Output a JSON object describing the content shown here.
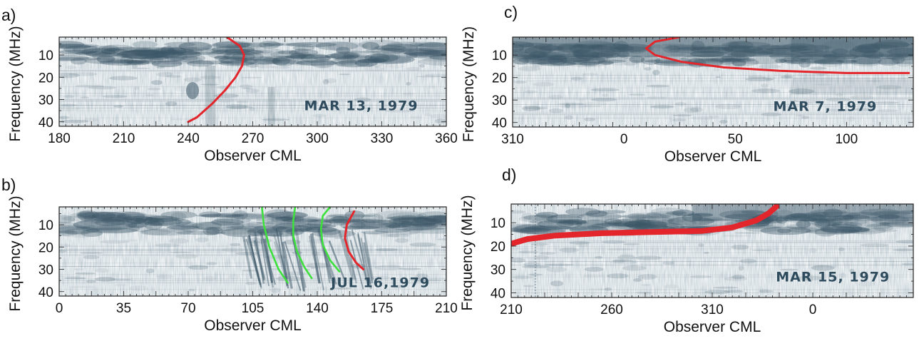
{
  "colors": {
    "spectrogram_ink": "#3a5566",
    "red_curve": "#e2262c",
    "green_curve": "#3ee03e",
    "background": "#f4f6f7"
  },
  "chart_data": [
    {
      "id": "a",
      "type": "spectrogram",
      "panel_label": "a)",
      "stamp": "MAR 13, 1979",
      "xlabel": "Observer CML",
      "ylabel": "Frequency (MHz)",
      "xticks": [
        "180",
        "210",
        "240",
        "270",
        "300",
        "330",
        "360"
      ],
      "yticks": [
        "10",
        "20",
        "30",
        "40"
      ],
      "xlim": [
        180,
        360
      ],
      "ylim": [
        42,
        2
      ],
      "series": [
        {
          "color": "red",
          "points": [
            [
              258,
              2
            ],
            [
              264,
              6
            ],
            [
              266,
              10
            ],
            [
              265,
              15
            ],
            [
              262,
              20
            ],
            [
              257,
              26
            ],
            [
              251,
              32
            ],
            [
              244,
              38
            ],
            [
              240,
              40
            ]
          ]
        }
      ]
    },
    {
      "id": "b",
      "type": "spectrogram",
      "panel_label": "b)",
      "stamp": "JUL 16,1979",
      "xlabel": "Observer CML",
      "ylabel": "Frequency (MHz)",
      "xticks": [
        "0",
        "35",
        "70",
        "105",
        "140",
        "175",
        "210"
      ],
      "yticks": [
        "10",
        "20",
        "30",
        "40"
      ],
      "xlim": [
        0,
        210
      ],
      "ylim": [
        42,
        2
      ],
      "series": [
        {
          "color": "green",
          "points": [
            [
              110,
              2
            ],
            [
              111,
              10
            ],
            [
              114,
              20
            ],
            [
              119,
              30
            ],
            [
              124,
              36
            ]
          ]
        },
        {
          "color": "green",
          "points": [
            [
              128,
              2
            ],
            [
              127,
              8
            ],
            [
              127,
              15
            ],
            [
              129,
              22
            ],
            [
              133,
              29
            ],
            [
              137,
              34
            ]
          ]
        },
        {
          "color": "green",
          "points": [
            [
              147,
              2
            ],
            [
              143,
              6
            ],
            [
              142,
              12
            ],
            [
              143,
              19
            ],
            [
              147,
              26
            ],
            [
              152,
              31
            ]
          ]
        },
        {
          "color": "red",
          "points": [
            [
              160,
              4
            ],
            [
              156,
              10
            ],
            [
              155,
              16
            ],
            [
              157,
              22
            ],
            [
              161,
              27
            ],
            [
              165,
              30
            ]
          ]
        }
      ]
    },
    {
      "id": "c",
      "type": "spectrogram",
      "panel_label": "c)",
      "stamp": "MAR 7, 1979",
      "xlabel": "Observer CML",
      "ylabel": "Frequency (MHz)",
      "xticks": [
        "310",
        "0",
        "50",
        "100"
      ],
      "yticks": [
        "10",
        "20",
        "30",
        "40"
      ],
      "xlim": [
        -50,
        130
      ],
      "ylim": [
        42,
        2
      ],
      "series": [
        {
          "color": "red",
          "points": [
            [
              25,
              2
            ],
            [
              14,
              4
            ],
            [
              10,
              7
            ],
            [
              14,
              10
            ],
            [
              26,
              13
            ],
            [
              45,
              15.5
            ],
            [
              70,
              17
            ],
            [
              100,
              18
            ],
            [
              128,
              18
            ]
          ]
        }
      ]
    },
    {
      "id": "d",
      "type": "spectrogram",
      "panel_label": "d)",
      "stamp": "MAR 15, 1979",
      "xlabel": "Observer CML",
      "ylabel": "Frequency (MHz)",
      "xticks": [
        "210",
        "260",
        "310",
        "0"
      ],
      "yticks": [
        "10",
        "20",
        "30",
        "40"
      ],
      "xlim": [
        210,
        410
      ],
      "ylim": [
        42,
        2
      ],
      "series": [
        {
          "color": "red",
          "points": [
            [
              210,
              19
            ],
            [
              218,
              17
            ],
            [
              232,
              15.5
            ],
            [
              255,
              14.5
            ],
            [
              280,
              14
            ],
            [
              305,
              13.5
            ],
            [
              320,
              12
            ],
            [
              332,
              9
            ],
            [
              338,
              6
            ],
            [
              342,
              3
            ]
          ]
        }
      ]
    }
  ]
}
